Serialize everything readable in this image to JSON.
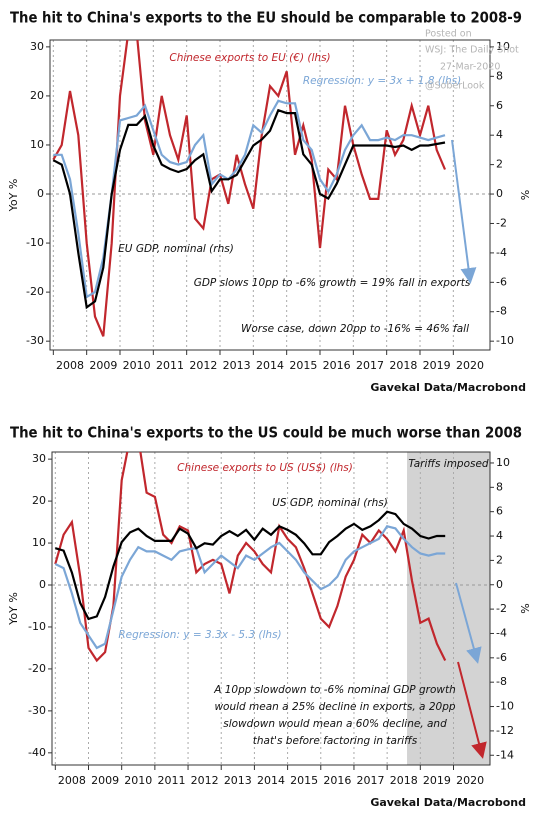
{
  "watermark": [
    "Posted on",
    "WSJ: The Daily Shot",
    "27-Mar-2020",
    "@SoberLook"
  ],
  "chart_data": [
    {
      "type": "line",
      "title": "The hit to China's exports to the EU should be comparable to 2008-9",
      "ylabel": "YoY %",
      "y2label": "%",
      "source": "Gavekal Data/Macrobond",
      "x": [
        2008,
        2008.25,
        2008.5,
        2008.75,
        2009,
        2009.25,
        2009.5,
        2009.75,
        2010,
        2010.25,
        2010.5,
        2010.75,
        2011,
        2011.25,
        2011.5,
        2011.75,
        2012,
        2012.25,
        2012.5,
        2012.75,
        2013,
        2013.25,
        2013.5,
        2013.75,
        2014,
        2014.25,
        2014.5,
        2014.75,
        2015,
        2015.25,
        2015.5,
        2015.75,
        2016,
        2016.25,
        2016.5,
        2016.75,
        2017,
        2017.25,
        2017.5,
        2017.75,
        2018,
        2018.25,
        2018.5,
        2018.75,
        2019,
        2019.25,
        2019.5,
        2019.75
      ],
      "series": [
        {
          "name": "Chinese exports to EU (€) (lhs)",
          "color": "#c1272d",
          "values": [
            7,
            10,
            21,
            12,
            -10,
            -25,
            -29,
            -10,
            20,
            33,
            33,
            15,
            8,
            20,
            12,
            7,
            16,
            -5,
            -7,
            3,
            4,
            -2,
            8,
            2,
            -3,
            12,
            22,
            20,
            25,
            8,
            14,
            7,
            -11,
            5,
            3,
            18,
            10,
            4,
            -1,
            -1,
            13,
            8,
            11,
            18,
            12,
            18,
            9,
            5
          ]
        },
        {
          "name": "Regression: y = 3x + 1.8 (lhs)",
          "color": "#7ba6d6",
          "values": [
            8,
            8,
            3,
            -8,
            -21,
            -20,
            -13,
            0,
            15,
            15.5,
            16,
            18,
            13,
            8,
            6.5,
            6,
            6.5,
            10,
            12,
            2,
            4,
            3,
            5,
            8,
            14,
            12.5,
            16,
            19,
            18.5,
            18.5,
            11,
            9,
            3,
            0.5,
            4,
            9,
            12,
            14,
            11,
            11,
            11.5,
            11,
            12,
            12,
            11.5,
            11,
            11.5,
            12
          ]
        },
        {
          "name": "EU GDP, nominal (rhs)",
          "color": "#000000",
          "axis": "y2",
          "values": [
            2.3,
            2.0,
            0,
            -4,
            -7.7,
            -7.3,
            -5,
            0,
            3,
            4.7,
            4.7,
            5.3,
            3.3,
            2,
            1.7,
            1.5,
            1.7,
            2.3,
            2.7,
            0.2,
            1,
            1,
            1.3,
            2.3,
            3.3,
            3.7,
            4.3,
            5.7,
            5.5,
            5.5,
            2.7,
            2,
            0,
            -0.3,
            0.7,
            2,
            3.3,
            3.3,
            3.3,
            3.3,
            3.3,
            3.2,
            3.3,
            3,
            3.3,
            3.3,
            3.4,
            3.5
          ]
        }
      ],
      "annotations": [
        "GDP slows 10pp to -6% growth = 19% fall in exports",
        "Worse case, down 20pp to -16% = 46% fall"
      ],
      "xlim": [
        2007.9,
        2021.1
      ],
      "xticks": [
        2008,
        2009,
        2010,
        2011,
        2012,
        2013,
        2014,
        2015,
        2016,
        2017,
        2018,
        2019,
        2020
      ],
      "ylim": [
        -31.8,
        31.4
      ],
      "yticks": [
        30,
        20,
        10,
        0,
        -10,
        -20,
        -30
      ],
      "y2lim": [
        -10.6,
        10.47
      ],
      "y2ticks": [
        10,
        8,
        6,
        4,
        2,
        0,
        -2,
        -4,
        -6,
        -8,
        -10
      ],
      "grid": true
    },
    {
      "type": "line",
      "title": "The hit to China's exports to the US could be much worse than 2008",
      "ylabel": "YoY %",
      "y2label": "%",
      "source": "Gavekal Data/Macrobond",
      "x": [
        2008,
        2008.25,
        2008.5,
        2008.75,
        2009,
        2009.25,
        2009.5,
        2009.75,
        2010,
        2010.25,
        2010.5,
        2010.75,
        2011,
        2011.25,
        2011.5,
        2011.75,
        2012,
        2012.25,
        2012.5,
        2012.75,
        2013,
        2013.25,
        2013.5,
        2013.75,
        2014,
        2014.25,
        2014.5,
        2014.75,
        2015,
        2015.25,
        2015.5,
        2015.75,
        2016,
        2016.25,
        2016.5,
        2016.75,
        2017,
        2017.25,
        2017.5,
        2017.75,
        2018,
        2018.25,
        2018.5,
        2018.75,
        2019,
        2019.25,
        2019.5,
        2019.75
      ],
      "series": [
        {
          "name": "Chinese exports to US (US$) (lhs)",
          "color": "#c1272d",
          "values": [
            5,
            12,
            15,
            2,
            -15,
            -18,
            -16,
            -5,
            25,
            35,
            35,
            22,
            21,
            12,
            10,
            14,
            13,
            3,
            5,
            6,
            5,
            -2,
            7,
            10,
            8,
            5,
            3,
            14,
            11,
            9,
            4,
            -2,
            -8,
            -10,
            -5,
            2,
            6,
            12,
            10,
            13,
            11,
            8,
            13,
            1,
            -9,
            -8,
            -14,
            -18
          ]
        },
        {
          "name": "Regression: y = 3.3x - 5.3 (lhs)",
          "color": "#7ba6d6",
          "values": [
            5,
            4,
            -2,
            -9,
            -12,
            -15,
            -14,
            -6,
            2,
            6,
            9,
            8,
            8,
            7,
            6,
            8,
            8.5,
            8.8,
            3,
            5,
            7,
            5.5,
            4,
            7,
            6,
            7.5,
            9,
            10,
            8,
            6,
            3,
            1,
            -1,
            0,
            2,
            6,
            8,
            9,
            10,
            11,
            14,
            13.5,
            11,
            9,
            7.5,
            7,
            7.5,
            7.5
          ]
        },
        {
          "name": "US GDP, nominal (rhs)",
          "color": "#000000",
          "axis": "y2",
          "values": [
            3,
            2.8,
            1,
            -1.5,
            -2.8,
            -2.6,
            -1,
            1.5,
            3.5,
            4.3,
            4.6,
            4,
            3.6,
            3.6,
            3.6,
            4.6,
            4.2,
            3,
            3.4,
            3.3,
            4,
            4.4,
            4,
            4.5,
            3.7,
            4.6,
            4.1,
            4.8,
            4.5,
            4.1,
            3.4,
            2.5,
            2.5,
            3.5,
            4,
            4.6,
            5,
            4.5,
            4.8,
            5.3,
            6,
            5.8,
            5,
            4.6,
            4,
            3.8,
            4,
            4
          ]
        }
      ],
      "annotations": [
        "A 10pp slowdown to -6% nominal GDP growth",
        "would mean a 25% decline in exports, a 20pp",
        "slowdown would mean a 60% decline, and",
        "that's before factoring in tariffs"
      ],
      "shaded": {
        "x": [
          2018.6,
          2021.1
        ],
        "label": "Tariffs imposed"
      },
      "xlim": [
        2007.9,
        2021.1
      ],
      "xticks": [
        2008,
        2009,
        2010,
        2011,
        2012,
        2013,
        2014,
        2015,
        2016,
        2017,
        2018,
        2019,
        2020
      ],
      "ylim": [
        -42.9,
        31.7
      ],
      "yticks": [
        30,
        20,
        10,
        0,
        -10,
        -20,
        -30,
        -40
      ],
      "y2lim": [
        -14.8,
        10.9
      ],
      "y2ticks": [
        10,
        8,
        6,
        4,
        2,
        0,
        -2,
        -4,
        -6,
        -8,
        -10,
        -12,
        -14
      ],
      "grid": true
    }
  ]
}
